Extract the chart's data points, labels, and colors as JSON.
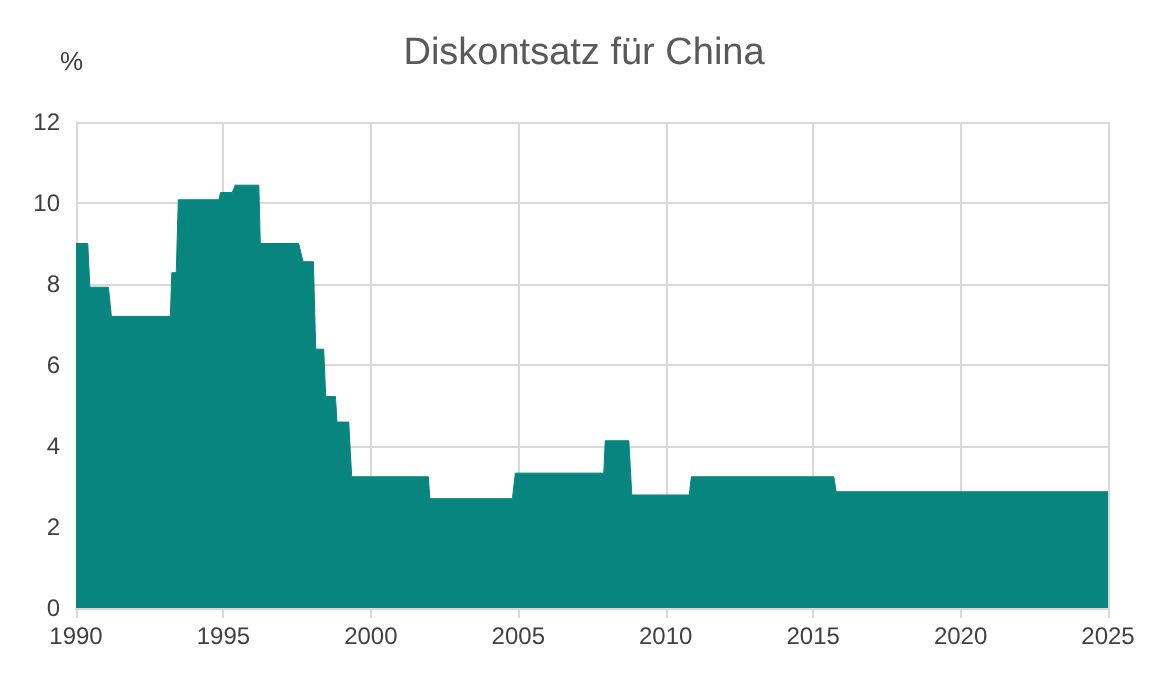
{
  "chart_data": {
    "type": "area",
    "title": "Diskontsatz für China",
    "ylabel": "%",
    "x": [
      1990,
      1990.4,
      1990.47,
      1991.1,
      1991.2,
      1993.2,
      1993.25,
      1993.4,
      1993.47,
      1994.85,
      1994.9,
      1995.3,
      1995.4,
      1996.2,
      1996.25,
      1997.55,
      1997.7,
      1998.05,
      1998.13,
      1998.4,
      1998.47,
      1998.8,
      1998.85,
      1999.25,
      1999.35,
      2001.95,
      2002.0,
      2004.8,
      2004.9,
      2007.9,
      2007.95,
      2008.75,
      2008.85,
      2010.8,
      2010.87,
      2015.7,
      2015.78,
      2025
    ],
    "series": [
      {
        "color": "#08857f",
        "values": [
          9.0,
          9.0,
          7.92,
          7.92,
          7.2,
          7.2,
          8.28,
          8.28,
          10.08,
          10.08,
          10.26,
          10.26,
          10.44,
          10.44,
          9.0,
          9.0,
          8.55,
          8.55,
          6.39,
          6.39,
          5.22,
          5.22,
          4.59,
          4.59,
          3.24,
          3.24,
          2.7,
          2.7,
          3.33,
          3.33,
          4.13,
          4.13,
          2.79,
          2.79,
          3.24,
          3.24,
          2.87,
          2.87
        ]
      }
    ],
    "xlim": [
      1990,
      2025
    ],
    "xticks": [
      1990,
      1995,
      2000,
      2005,
      2010,
      2015,
      2020,
      2025
    ],
    "ylim": [
      0,
      12
    ],
    "yticks": [
      0,
      2,
      4,
      6,
      8,
      10,
      12
    ],
    "grid": true
  }
}
